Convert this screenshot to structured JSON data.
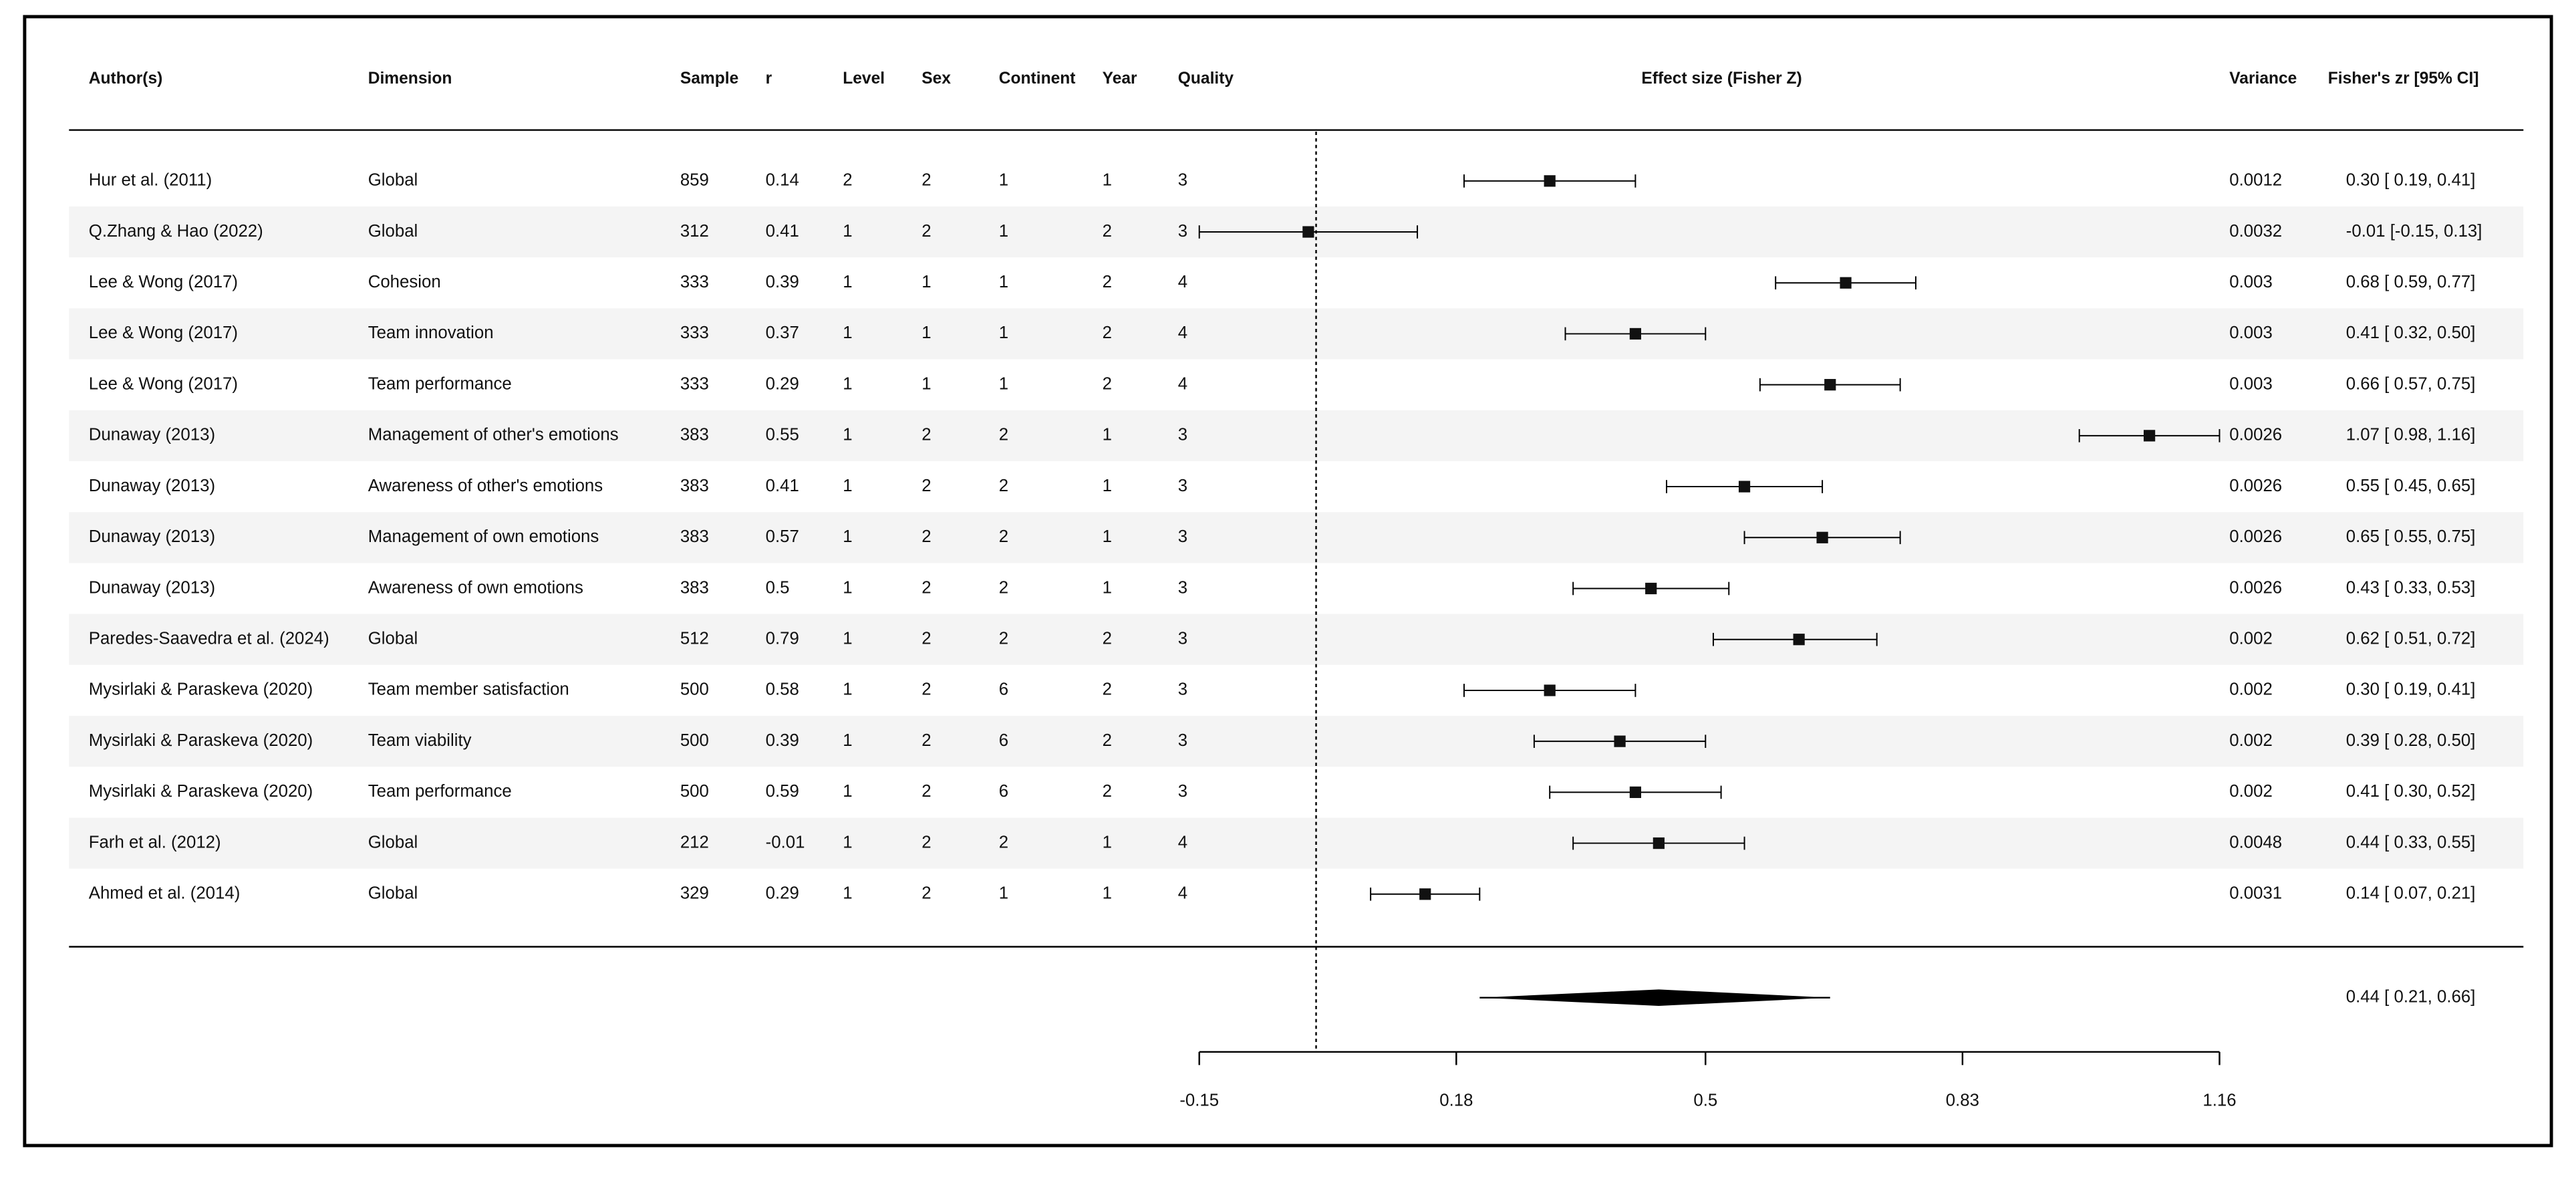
{
  "chart_data": {
    "type": "forest",
    "columns": [
      "Author(s)",
      "Dimension",
      "Sample",
      "r",
      "Level",
      "Sex",
      "Continent",
      "Year",
      "Quality"
    ],
    "xlabel": "Effect size (Fisher Z)",
    "variance_label": "Variance",
    "ci_label": "Fisher's zr [95% CI]",
    "rows": [
      [
        "Hur et al. (2011)",
        "Global",
        859,
        0.14,
        2,
        2,
        1,
        1,
        3
      ],
      [
        "Q.Zhang & Hao (2022)",
        "Global",
        312,
        0.41,
        1,
        2,
        1,
        2,
        3
      ],
      [
        "Lee & Wong (2017)",
        "Cohesion",
        333,
        0.39,
        1,
        1,
        1,
        2,
        4
      ],
      [
        "Lee & Wong (2017)",
        "Team innovation",
        333,
        0.37,
        1,
        1,
        1,
        2,
        4
      ],
      [
        "Lee & Wong (2017)",
        "Team performance",
        333,
        0.29,
        1,
        1,
        1,
        2,
        4
      ],
      [
        "Dunaway (2013)",
        "Management of other's emotions",
        383,
        0.55,
        1,
        2,
        2,
        1,
        3
      ],
      [
        "Dunaway (2013)",
        "Awareness of other's emotions",
        383,
        0.41,
        1,
        2,
        2,
        1,
        3
      ],
      [
        "Dunaway (2013)",
        "Management of own emotions",
        383,
        0.57,
        1,
        2,
        2,
        1,
        3
      ],
      [
        "Dunaway (2013)",
        "Awareness of own emotions",
        383,
        0.5,
        1,
        2,
        2,
        1,
        3
      ],
      [
        "Paredes-Saavedra et al. (2024)",
        "Global",
        512,
        0.79,
        1,
        2,
        2,
        2,
        3
      ],
      [
        "Mysirlaki & Paraskeva (2020)",
        "Team member satisfaction",
        500,
        0.58,
        1,
        2,
        6,
        2,
        3
      ],
      [
        "Mysirlaki & Paraskeva (2020)",
        "Team viability",
        500,
        0.39,
        1,
        2,
        6,
        2,
        3
      ],
      [
        "Mysirlaki & Paraskeva (2020)",
        "Team performance",
        500,
        0.59,
        1,
        2,
        6,
        2,
        3
      ],
      [
        "Farh et al. (2012)",
        "Global",
        212,
        -0.01,
        1,
        2,
        2,
        1,
        4
      ],
      [
        "Ahmed et al. (2014)",
        "Global",
        329,
        0.29,
        1,
        2,
        1,
        1,
        4
      ]
    ],
    "variance": [
      0.0012,
      0.0032,
      0.003,
      0.003,
      0.003,
      0.0026,
      0.0026,
      0.0026,
      0.0026,
      0.002,
      0.002,
      0.002,
      0.002,
      0.0048,
      0.0031
    ],
    "values": [
      0.3,
      -0.01,
      0.68,
      0.41,
      0.66,
      1.07,
      0.55,
      0.65,
      0.43,
      0.62,
      0.3,
      0.39,
      0.41,
      0.44,
      0.14
    ],
    "lower": [
      0.19,
      -0.15,
      0.59,
      0.32,
      0.57,
      0.98,
      0.45,
      0.55,
      0.33,
      0.51,
      0.19,
      0.28,
      0.3,
      0.33,
      0.07
    ],
    "upper": [
      0.41,
      0.13,
      0.77,
      0.5,
      0.75,
      1.16,
      0.65,
      0.75,
      0.53,
      0.72,
      0.41,
      0.5,
      0.52,
      0.55,
      0.21
    ],
    "value_labels": [
      "0.30 [ 0.19, 0.41]",
      "-0.01 [-0.15, 0.13]",
      "0.68 [ 0.59, 0.77]",
      "0.41 [ 0.32, 0.50]",
      "0.66 [ 0.57, 0.75]",
      "1.07 [ 0.98, 1.16]",
      "0.55 [ 0.45, 0.65]",
      "0.65 [ 0.55, 0.75]",
      "0.43 [ 0.33, 0.53]",
      "0.62 [ 0.51, 0.72]",
      "0.30 [ 0.19, 0.41]",
      "0.39 [ 0.28, 0.50]",
      "0.41 [ 0.30, 0.52]",
      "0.44 [ 0.33, 0.55]",
      "0.14 [ 0.07, 0.21]"
    ],
    "summary": {
      "value": 0.44,
      "lower": 0.21,
      "upper": 0.66,
      "label": "0.44 [ 0.21, 0.66]"
    },
    "reference_line": 0,
    "xlim": [
      -0.15,
      1.16
    ],
    "xticks": [
      -0.15,
      0.18,
      0.5,
      0.83,
      1.16
    ]
  }
}
